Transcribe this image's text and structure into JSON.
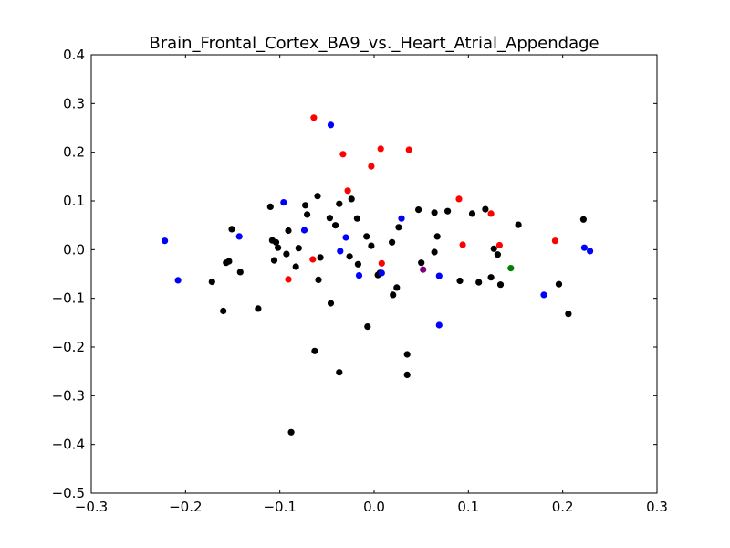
{
  "chart_data": {
    "type": "scatter",
    "title": "Brain_Frontal_Cortex_BA9_vs._Heart_Atrial_Appendage",
    "xlabel": "",
    "ylabel": "",
    "xlim": [
      -0.3,
      0.3
    ],
    "ylim": [
      -0.5,
      0.4
    ],
    "grid": false,
    "xticks": [
      -0.3,
      -0.2,
      -0.1,
      0.0,
      0.1,
      0.2,
      0.3
    ],
    "xtick_labels": [
      "−0.3",
      "−0.2",
      "−0.1",
      "0.0",
      "0.1",
      "0.2",
      "0.3"
    ],
    "yticks": [
      0.4,
      0.3,
      0.2,
      0.1,
      0.0,
      -0.1,
      -0.2,
      -0.3,
      -0.4,
      -0.5
    ],
    "ytick_labels": [
      "0.4",
      "0.3",
      "0.2",
      "0.1",
      "0.0",
      "−0.1",
      "−0.2",
      "−0.3",
      "−0.4",
      "−0.5"
    ],
    "series": [
      {
        "name": "black",
        "color": "#000000",
        "points": [
          [
            -0.172,
            -0.066
          ],
          [
            -0.16,
            -0.126
          ],
          [
            -0.157,
            -0.027
          ],
          [
            -0.154,
            -0.024
          ],
          [
            -0.151,
            0.042
          ],
          [
            -0.142,
            -0.046
          ],
          [
            -0.123,
            -0.121
          ],
          [
            -0.11,
            0.088
          ],
          [
            -0.108,
            0.019
          ],
          [
            -0.106,
            -0.022
          ],
          [
            -0.104,
            0.015
          ],
          [
            -0.102,
            0.004
          ],
          [
            -0.093,
            -0.009
          ],
          [
            -0.091,
            0.039
          ],
          [
            -0.088,
            -0.375
          ],
          [
            -0.083,
            -0.035
          ],
          [
            -0.08,
            0.003
          ],
          [
            -0.073,
            0.091
          ],
          [
            -0.071,
            0.072
          ],
          [
            -0.063,
            -0.208
          ],
          [
            -0.06,
            0.11
          ],
          [
            -0.059,
            -0.062
          ],
          [
            -0.057,
            -0.016
          ],
          [
            -0.047,
            0.065
          ],
          [
            -0.046,
            -0.11
          ],
          [
            -0.041,
            0.05
          ],
          [
            -0.037,
            -0.252
          ],
          [
            -0.037,
            0.094
          ],
          [
            -0.026,
            -0.014
          ],
          [
            -0.024,
            0.104
          ],
          [
            -0.018,
            0.064
          ],
          [
            -0.017,
            -0.03
          ],
          [
            -0.008,
            0.027
          ],
          [
            -0.007,
            -0.158
          ],
          [
            -0.003,
            0.008
          ],
          [
            0.004,
            -0.052
          ],
          [
            0.006,
            -0.048
          ],
          [
            0.019,
            0.015
          ],
          [
            0.02,
            -0.093
          ],
          [
            0.024,
            -0.078
          ],
          [
            0.026,
            0.046
          ],
          [
            0.035,
            -0.215
          ],
          [
            0.035,
            -0.257
          ],
          [
            0.047,
            0.082
          ],
          [
            0.05,
            -0.027
          ],
          [
            0.064,
            0.076
          ],
          [
            0.064,
            -0.005
          ],
          [
            0.067,
            0.027
          ],
          [
            0.078,
            0.079
          ],
          [
            0.091,
            -0.064
          ],
          [
            0.104,
            0.074
          ],
          [
            0.111,
            -0.067
          ],
          [
            0.118,
            0.083
          ],
          [
            0.124,
            -0.057
          ],
          [
            0.127,
            0.002
          ],
          [
            0.131,
            -0.01
          ],
          [
            0.134,
            -0.072
          ],
          [
            0.153,
            0.051
          ],
          [
            0.196,
            -0.071
          ],
          [
            0.206,
            -0.132
          ],
          [
            0.222,
            0.062
          ]
        ]
      },
      {
        "name": "blue",
        "color": "#0000ff",
        "points": [
          [
            -0.222,
            0.018
          ],
          [
            -0.208,
            -0.063
          ],
          [
            -0.143,
            0.027
          ],
          [
            -0.096,
            0.097
          ],
          [
            -0.074,
            0.04
          ],
          [
            -0.046,
            0.256
          ],
          [
            -0.036,
            -0.003
          ],
          [
            -0.03,
            0.025
          ],
          [
            -0.016,
            -0.053
          ],
          [
            0.008,
            -0.048
          ],
          [
            0.029,
            0.064
          ],
          [
            0.069,
            -0.054
          ],
          [
            0.069,
            -0.155
          ],
          [
            0.18,
            -0.093
          ],
          [
            0.223,
            0.004
          ],
          [
            0.229,
            -0.003
          ]
        ]
      },
      {
        "name": "red",
        "color": "#ff0000",
        "points": [
          [
            -0.064,
            0.271
          ],
          [
            -0.065,
            -0.02
          ],
          [
            -0.091,
            -0.061
          ],
          [
            -0.033,
            0.196
          ],
          [
            -0.028,
            0.121
          ],
          [
            -0.003,
            0.171
          ],
          [
            0.007,
            0.207
          ],
          [
            0.008,
            -0.028
          ],
          [
            0.037,
            0.205
          ],
          [
            0.09,
            0.104
          ],
          [
            0.094,
            0.01
          ],
          [
            0.124,
            0.074
          ],
          [
            0.133,
            0.009
          ],
          [
            0.192,
            0.018
          ]
        ]
      },
      {
        "name": "green",
        "color": "#008000",
        "points": [
          [
            0.145,
            -0.038
          ]
        ]
      },
      {
        "name": "purple",
        "color": "#800080",
        "points": [
          [
            0.052,
            -0.041
          ]
        ]
      }
    ]
  }
}
